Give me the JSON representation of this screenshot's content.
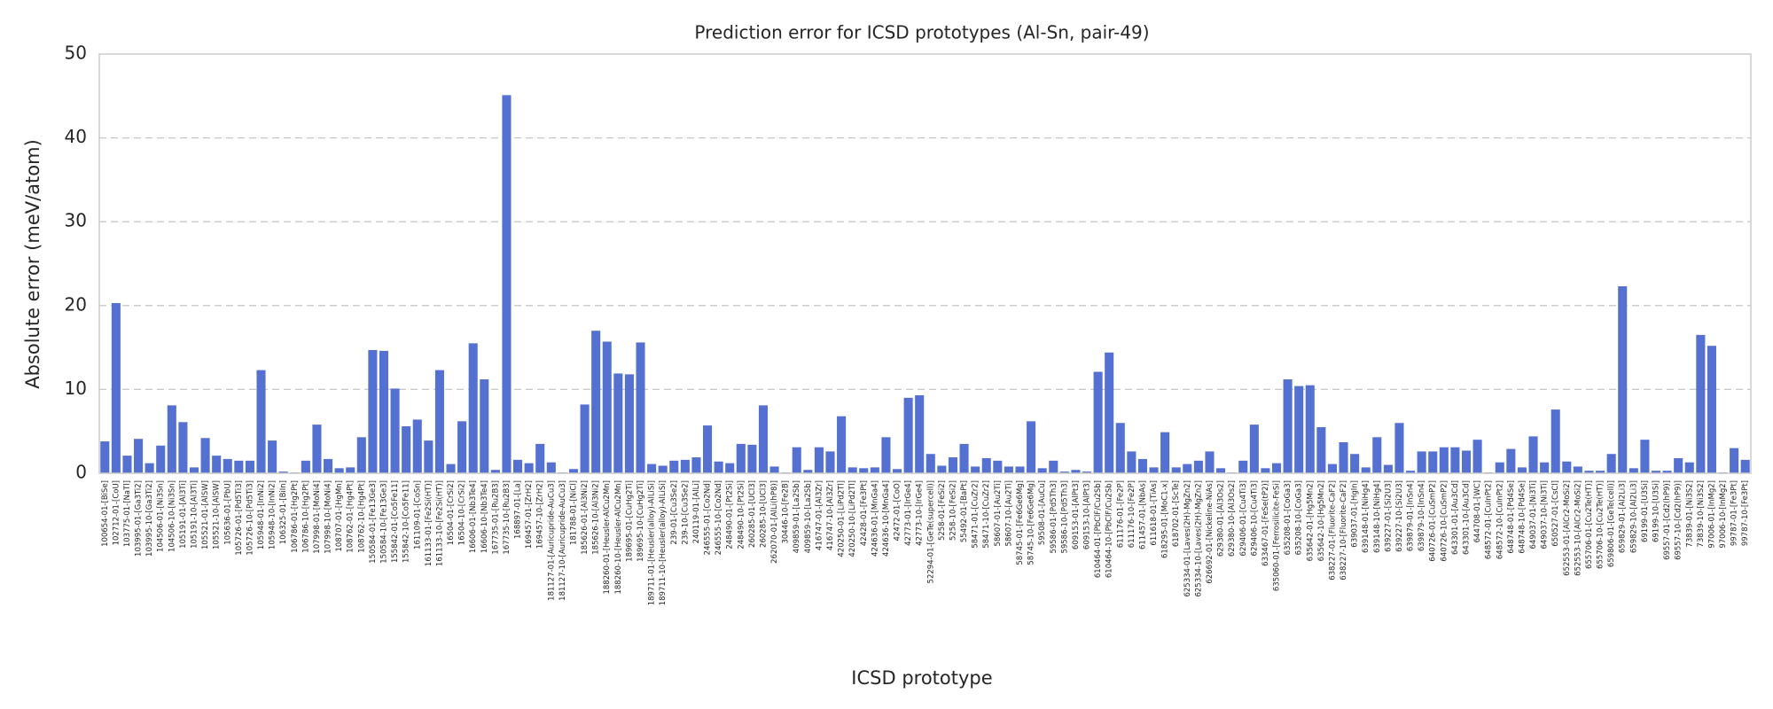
{
  "chart_data": {
    "type": "bar",
    "title": "Prediction error for ICSD prototypes (Al-Sn, pair-49)",
    "xlabel": "ICSD prototype",
    "ylabel": "Absolute error (meV/atom)",
    "color": "#5470d0",
    "grid": true,
    "ylim": [
      0,
      50
    ],
    "yticks": [
      0,
      10,
      20,
      30,
      40,
      50
    ],
    "categories": [
      "100654-01-[BiSe]",
      "102712-01-[CoU]",
      "103775-01-[NaTl]",
      "103995-01-[Ga3Ti2]",
      "103995-10-[Ga3Ti2]",
      "104506-01-[Ni3Sn]",
      "104506-10-[Ni3Sn]",
      "105191-01-[Al3Ti]",
      "105191-10-[Al3Ti]",
      "105521-01-[AlSW]",
      "105521-10-[AlSW]",
      "105636-01-[PbU]",
      "105726-01-[Pd5Ti3]",
      "105726-10-[Pd5Ti3]",
      "105948-01-[InNi2]",
      "105948-10-[InNi2]",
      "106325-01-[BiIn]",
      "106786-01-[Hg2Pt]",
      "106786-10-[Hg2Pt]",
      "107998-01-[MoNi4]",
      "107998-10-[MoNi4]",
      "108707-01-[HgMn]",
      "108762-01-[Hg4Pt]",
      "108762-10-[Hg4Pt]",
      "150584-01-[Fe13Ge3]",
      "150584-10-[Fe13Ge3]",
      "155842-01-[Co5Fe11]",
      "155842-10-[Co5Fe11]",
      "161109-01-[CoSn]",
      "161133-01-[Fe2Si(HT)]",
      "161133-10-[Fe2Si(HT)]",
      "16504-01-[CrSi2]",
      "16504-10-[CrSi2]",
      "16606-01-[Nb3Te4]",
      "16606-10-[Nb3Te4]",
      "167735-01-[Ru2B3]",
      "167735-10-[Ru2B3]",
      "168897-01-[La]",
      "169457-01-[ZrH2]",
      "169457-10-[ZrH2]",
      "181127-01-[Auricupride-AuCu3]",
      "181127-10-[Auricupride-AuCu3]",
      "181788-01-[NiCl]",
      "185626-01-[Al3Ni2]",
      "185626-10-[Al3Ni2]",
      "188260-01-[Heusler-AlCu2Mn]",
      "188260-10-[Heusler-AlCu2Mn]",
      "189695-01-[CuHg2Ti]",
      "189695-10-[CuHg2Ti]",
      "189711-01-[Heusler(alloy)-AlLiSi]",
      "189711-10-[Heusler(alloy)-AlLiSi]",
      "239-01-[Cu3Se2]",
      "239-10-[Cu3Se2]",
      "240119-01-[AlLi]",
      "246555-01-[Co2Nd]",
      "246555-10-[Co2Nd]",
      "248490-01-[Pt2Si]",
      "248490-10-[Pt2Si]",
      "260285-01-[UCl3]",
      "260285-10-[UCl3]",
      "262070-01-[AlLi(hP8)]",
      "30446-10-[Fe2B]",
      "409859-01-[La2Sb]",
      "409859-10-[La2Sb]",
      "416747-01-[Al3Zr]",
      "416747-10-[Al3Zr]",
      "420250-01-[LiPd2Tl]",
      "420250-10-[LiPd2Tl]",
      "42428-01-[Fe3Pt]",
      "424636-01-[MnGa4]",
      "424636-10-[MnGa4]",
      "42472-01-[CoO]",
      "42773-01-[IrGe4]",
      "42773-10-[IrGe4]",
      "52294-01-[GeTe(supercell)]",
      "5258-01-[FeSi2]",
      "5258-10-[FeSi2]",
      "55492-01-[BaPt]",
      "58471-01-[CuZr2]",
      "58471-10-[CuZr2]",
      "58607-01-[Au2Ti]",
      "58607-10-[Au2Ti]",
      "58745-01-[Fe6Ge6Mg]",
      "58745-10-[Fe6Ge6Mg]",
      "59508-01-[AuCu]",
      "59586-01-[Pd5Th3]",
      "59586-10-[Pd5Th3]",
      "609153-01-[AlPt3]",
      "609153-10-[AlPt3]",
      "610464-01-[PbClF/Cu2Sb]",
      "610464-10-[PbClF/Cu2Sb]",
      "611176-01-[Fe2P]",
      "611176-10-[Fe2P]",
      "611457-01-[NbAs]",
      "611618-01-[TiAs]",
      "618295-01-[MoC1-x]",
      "618702-01-[ScTe]",
      "625334-01-[Laves(2H)-MgZn2]",
      "625334-10-[Laves(2H)-MgZn2]",
      "626692-01-[Nickeline-NiAs]",
      "629380-01-[Al3Os2]",
      "629380-10-[Al3Os2]",
      "629406-01-[Cu4Ti3]",
      "629406-10-[Cu4Ti3]",
      "633467-01-[FeSe(tP2)]",
      "635060-01-[Ferrosilicite-FeSi]",
      "635208-01-[CoGa3]",
      "635208-10-[CoGa3]",
      "635642-01-[Hg5Mn2]",
      "635642-10-[Hg5Mn2]",
      "638227-01-[Fluorite-CaF2]",
      "638227-10-[Fluorite-CaF2]",
      "639037-01-[HgIn]",
      "639148-01-[NiHg4]",
      "639148-10-[NiHg4]",
      "639227-01-[Si2U3]",
      "639227-10-[Si2U3]",
      "639879-01-[InSn4]",
      "639879-10-[InSn4]",
      "640726-01-[CuSmP2]",
      "640726-10-[CuSmP2]",
      "643301-01-[Au3Cd]",
      "643301-10-[Au3Cd]",
      "644708-01-[WC]",
      "648572-01-[CuInPt2]",
      "648572-10-[CuInPt2]",
      "648748-01-[Pd4Se]",
      "648748-10-[Pd4Se]",
      "649037-01-[Ni3Ti]",
      "649037-10-[Ni3Ti]",
      "650527-01-[CsCl]",
      "652553-01-[AlCr2-MoSi2]",
      "652553-10-[AlCr2-MoSi2]",
      "655706-01-[Cu2Te(HT)]",
      "655706-10-[Cu2Te(HT)]",
      "659806-01-[GeTe(cell)]",
      "659829-01-[Al2Li3]",
      "659829-10-[Al2Li3]",
      "69199-01-[U3Si]",
      "69199-10-[U3Si]",
      "69557-01-[Cd2(hP9)]",
      "69557-10-[Cd2(hP9)]",
      "73839-01-[Ni3S2]",
      "73839-10-[Ni3S2]",
      "97006-01-[InMg2]",
      "97006-10-[InMg2]",
      "99787-01-[Fe3Pt]",
      "99787-10-[Fe3Pt]"
    ],
    "values": [
      3.8,
      20.3,
      2.1,
      4.1,
      1.2,
      3.3,
      8.1,
      6.1,
      0.7,
      4.2,
      2.1,
      1.7,
      1.5,
      1.5,
      12.3,
      3.9,
      0.2,
      0.1,
      1.5,
      5.8,
      1.7,
      0.6,
      0.7,
      4.3,
      14.7,
      14.6,
      10.1,
      5.6,
      6.4,
      3.9,
      12.3,
      1.1,
      6.2,
      15.5,
      11.2,
      0.4,
      45.1,
      1.6,
      1.2,
      3.5,
      1.3,
      0.1,
      0.5,
      8.2,
      17.0,
      15.7,
      11.9,
      11.8,
      15.6,
      1.1,
      0.9,
      1.5,
      1.6,
      1.9,
      5.7,
      1.4,
      1.2,
      3.5,
      3.4,
      8.1,
      0.8,
      0.1,
      3.1,
      0.4,
      3.1,
      2.6,
      6.8,
      0.7,
      0.6,
      0.7,
      4.3,
      0.5,
      9.0,
      9.3,
      2.3,
      0.9,
      1.9,
      3.5,
      0.8,
      1.8,
      1.5,
      0.8,
      0.8,
      6.2,
      0.6,
      1.5,
      0.2,
      0.4,
      0.2,
      12.1,
      14.4,
      6.0,
      2.6,
      1.7,
      0.7,
      4.9,
      0.7,
      1.1,
      1.5,
      2.6,
      0.6,
      0.1,
      1.5,
      5.8,
      0.6,
      1.2,
      11.2,
      10.4,
      10.5,
      5.5,
      1.1,
      3.7,
      2.3,
      0.7,
      4.3,
      1.0,
      6.0,
      0.3,
      2.6,
      2.6,
      3.1,
      3.1,
      2.7,
      4.0,
      0.1,
      1.3,
      2.9,
      0.7,
      4.4,
      1.3,
      7.6,
      1.4,
      0.8,
      0.3,
      0.3,
      2.3,
      22.3,
      0.6,
      4.0,
      0.3,
      0.3,
      1.8,
      1.3,
      16.5,
      15.2,
      0.1,
      3.0,
      1.6
    ]
  }
}
